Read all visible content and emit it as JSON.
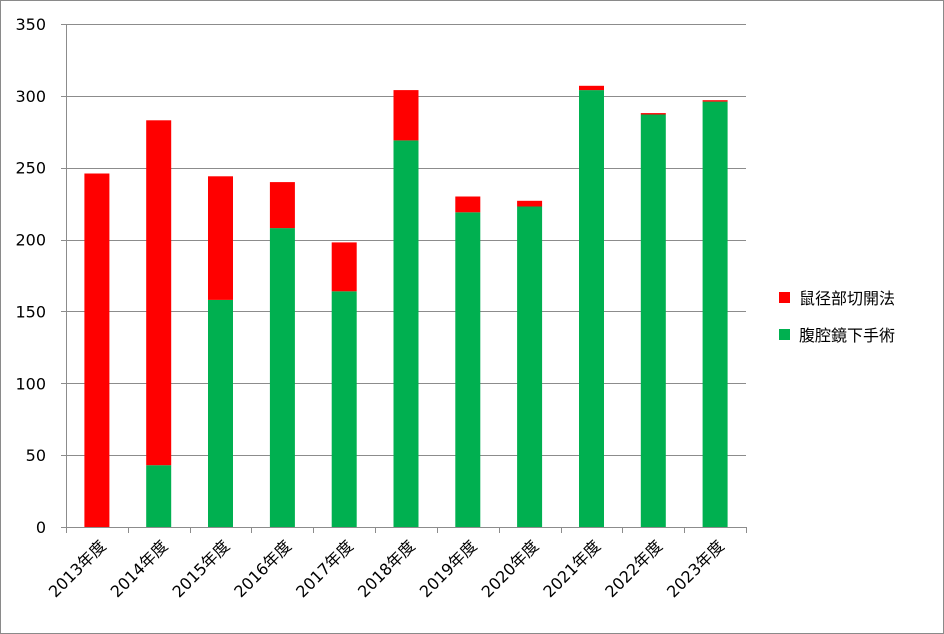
{
  "chart_data": {
    "type": "bar",
    "stacked": true,
    "title": "",
    "xlabel": "",
    "ylabel": "",
    "ylim": [
      0,
      350
    ],
    "yticks": [
      0,
      50,
      100,
      150,
      200,
      250,
      300,
      350
    ],
    "grid": true,
    "legend_position": "right",
    "categories": [
      "2013年度",
      "2014年度",
      "2015年度",
      "2016年度",
      "2017年度",
      "2018年度",
      "2019年度",
      "2020年度",
      "2021年度",
      "2022年度",
      "2023年度"
    ],
    "series": [
      {
        "name": "腹腔鏡下手術",
        "color": "#00b050",
        "values": [
          0,
          43,
          158,
          208,
          164,
          269,
          219,
          223,
          304,
          287,
          296
        ]
      },
      {
        "name": "鼠径部切開法",
        "color": "#ff0000",
        "values": [
          246,
          240,
          86,
          32,
          34,
          35,
          11,
          4,
          3,
          1,
          1
        ]
      }
    ],
    "legend": [
      "鼠径部切開法",
      "腹腔鏡下手術"
    ]
  }
}
